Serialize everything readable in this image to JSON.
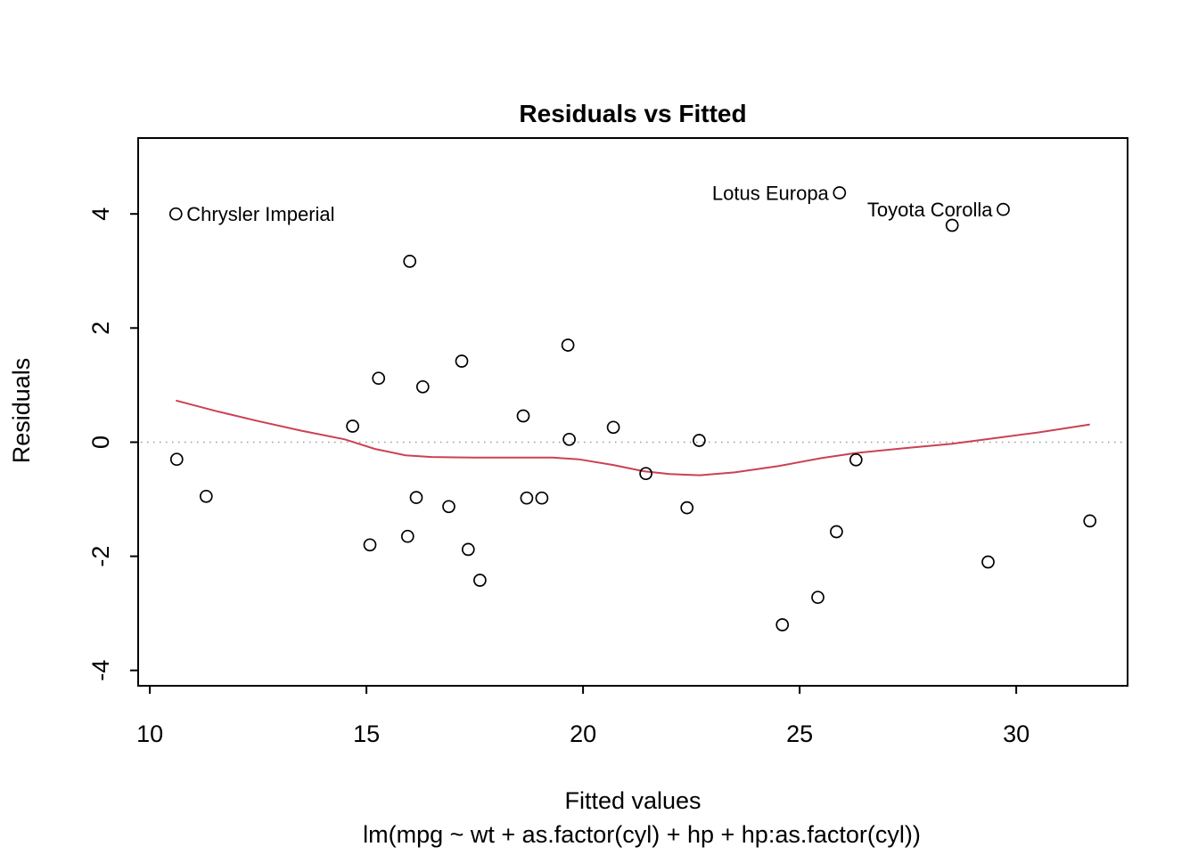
{
  "chart_data": {
    "type": "scatter",
    "title": "Residuals vs Fitted",
    "xlabel": "Fitted values",
    "ylabel": "Residuals",
    "model_label": "lm(mpg ~ wt + as.factor(cyl) + hp + hp:as.factor(cyl))",
    "xlim": [
      9.73,
      32.57
    ],
    "ylim": [
      -4.27,
      5.33
    ],
    "xticks": [
      10,
      15,
      20,
      25,
      30
    ],
    "yticks": [
      -4,
      -2,
      0,
      2,
      4
    ],
    "grid": "off",
    "legend": "none",
    "colors": {
      "smooth_line": "#cb4154",
      "zero_line": "#999999",
      "points": "#000000",
      "box": "#000000"
    },
    "zero_reference_line": {
      "y": 0,
      "style": "dotted"
    },
    "points": [
      {
        "x": 10.6,
        "y": 4.0
      },
      {
        "x": 10.62,
        "y": -0.3
      },
      {
        "x": 11.3,
        "y": -0.95
      },
      {
        "x": 14.68,
        "y": 0.28
      },
      {
        "x": 15.08,
        "y": -1.8
      },
      {
        "x": 15.28,
        "y": 1.12
      },
      {
        "x": 15.95,
        "y": -1.65
      },
      {
        "x": 16.0,
        "y": 3.17
      },
      {
        "x": 16.15,
        "y": -0.97
      },
      {
        "x": 16.3,
        "y": 0.97
      },
      {
        "x": 16.9,
        "y": -1.13
      },
      {
        "x": 17.2,
        "y": 1.42
      },
      {
        "x": 17.35,
        "y": -1.88
      },
      {
        "x": 17.62,
        "y": -2.42
      },
      {
        "x": 18.62,
        "y": 0.46
      },
      {
        "x": 18.7,
        "y": -0.98
      },
      {
        "x": 19.05,
        "y": -0.98
      },
      {
        "x": 19.65,
        "y": 1.7
      },
      {
        "x": 19.68,
        "y": 0.05
      },
      {
        "x": 20.7,
        "y": 0.26
      },
      {
        "x": 21.45,
        "y": -0.55
      },
      {
        "x": 22.4,
        "y": -1.15
      },
      {
        "x": 22.68,
        "y": 0.03
      },
      {
        "x": 24.6,
        "y": -3.2
      },
      {
        "x": 25.42,
        "y": -2.72
      },
      {
        "x": 25.85,
        "y": -1.57
      },
      {
        "x": 25.92,
        "y": 4.37
      },
      {
        "x": 26.3,
        "y": -0.31
      },
      {
        "x": 28.52,
        "y": 3.8
      },
      {
        "x": 29.35,
        "y": -2.1
      },
      {
        "x": 29.7,
        "y": 4.08
      },
      {
        "x": 31.7,
        "y": -1.38
      }
    ],
    "labeled_points": [
      {
        "label": "Chrysler Imperial",
        "x": 10.6,
        "y": 4.0,
        "side": "right"
      },
      {
        "label": "Lotus Europa",
        "x": 25.92,
        "y": 4.37,
        "side": "left"
      },
      {
        "label": "Toyota Corolla",
        "x": 29.7,
        "y": 4.08,
        "side": "left"
      }
    ],
    "smooth_line": {
      "points": [
        [
          10.6,
          0.73
        ],
        [
          11.5,
          0.55
        ],
        [
          12.5,
          0.37
        ],
        [
          13.5,
          0.2
        ],
        [
          14.5,
          0.05
        ],
        [
          15.2,
          -0.12
        ],
        [
          15.9,
          -0.23
        ],
        [
          16.5,
          -0.26
        ],
        [
          17.5,
          -0.27
        ],
        [
          18.5,
          -0.27
        ],
        [
          19.3,
          -0.27
        ],
        [
          19.9,
          -0.3
        ],
        [
          20.7,
          -0.4
        ],
        [
          21.4,
          -0.51
        ],
        [
          22.0,
          -0.56
        ],
        [
          22.7,
          -0.58
        ],
        [
          23.5,
          -0.53
        ],
        [
          24.5,
          -0.42
        ],
        [
          25.5,
          -0.28
        ],
        [
          26.3,
          -0.19
        ],
        [
          27.5,
          -0.1
        ],
        [
          28.5,
          -0.03
        ],
        [
          29.5,
          0.07
        ],
        [
          30.5,
          0.17
        ],
        [
          31.7,
          0.31
        ]
      ]
    }
  }
}
